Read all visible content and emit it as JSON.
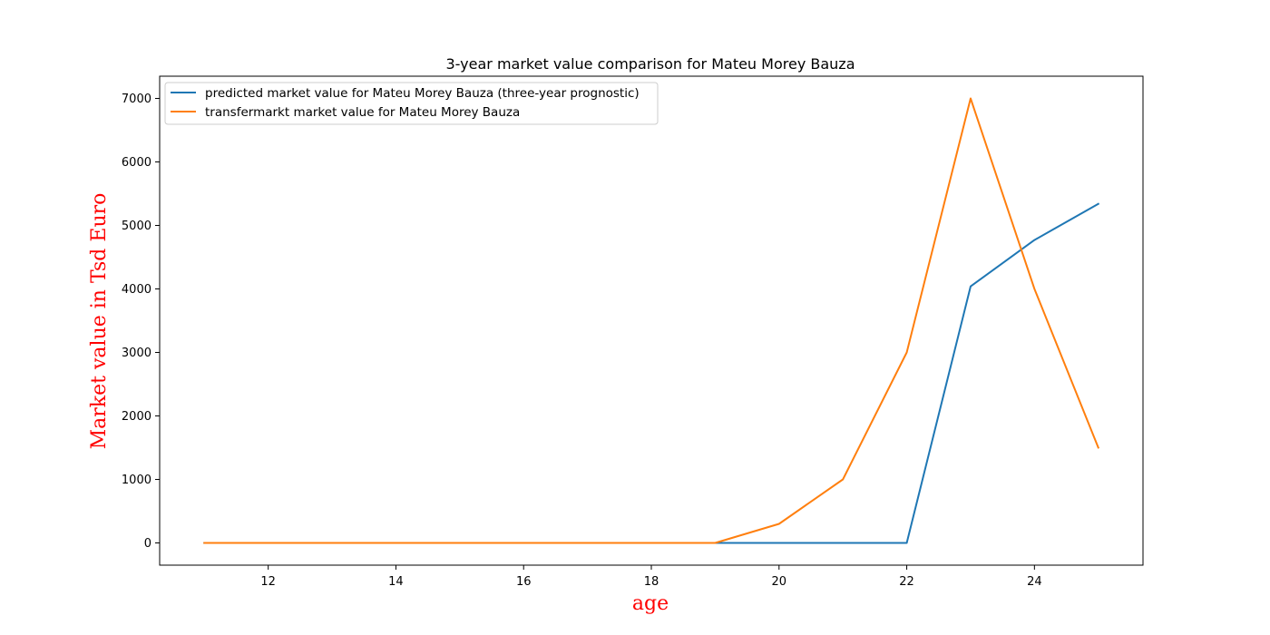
{
  "chart_data": {
    "type": "line",
    "title": "3-year market value comparison for Mateu Morey Bauza",
    "xlabel": "age",
    "ylabel": "Market value in Tsd Euro",
    "axis_label_color": "#ff0000",
    "xlim": [
      10.3,
      25.7
    ],
    "ylim": [
      -350,
      7350
    ],
    "x_ticks": [
      12,
      14,
      16,
      18,
      20,
      22,
      24
    ],
    "y_ticks": [
      0,
      1000,
      2000,
      3000,
      4000,
      5000,
      6000,
      7000
    ],
    "grid": false,
    "legend_position": "top-left",
    "x": [
      11,
      12,
      13,
      14,
      15,
      16,
      17,
      18,
      19,
      20,
      21,
      22,
      23,
      24,
      25
    ],
    "series": [
      {
        "name": "predicted market value for Mateu Morey Bauza (three-year prognostic)",
        "color": "#1f77b4",
        "values": [
          0,
          0,
          0,
          0,
          0,
          0,
          0,
          0,
          0,
          0,
          0,
          0,
          4040,
          4770,
          5340
        ]
      },
      {
        "name": "transfermarkt market value for Mateu Morey Bauza",
        "color": "#ff7f0e",
        "values": [
          0,
          0,
          0,
          0,
          0,
          0,
          0,
          0,
          0,
          300,
          1000,
          3000,
          7000,
          4000,
          1500
        ]
      }
    ]
  }
}
